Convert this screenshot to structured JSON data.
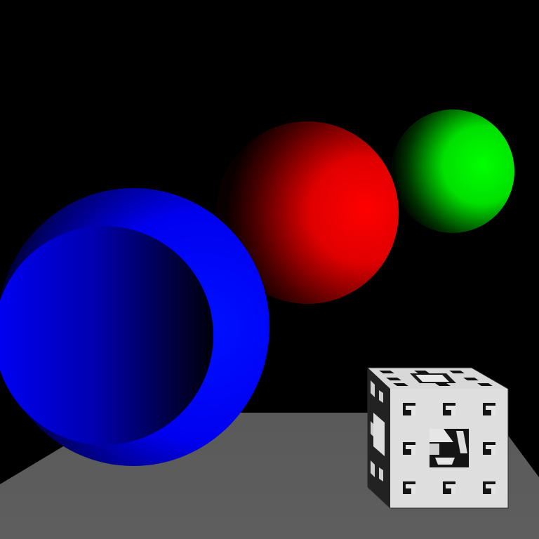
{
  "scene": {
    "background_color": "#000000",
    "floor_color": "#5c5c5c",
    "objects": [
      {
        "name": "blue-hollow-sphere",
        "color": "#0000ff"
      },
      {
        "name": "red-sphere",
        "color": "#ff0000"
      },
      {
        "name": "green-sphere",
        "color": "#00ff00"
      },
      {
        "name": "menger-sponge-cube",
        "color": "#dcdcdc"
      }
    ]
  }
}
